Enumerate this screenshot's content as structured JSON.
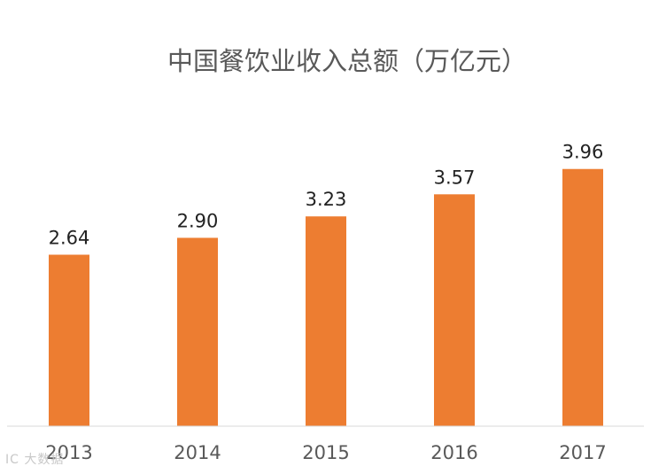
{
  "chart_data": {
    "type": "bar",
    "title": "中国餐饮业收入总额（万亿元）",
    "categories": [
      "2013",
      "2014",
      "2015",
      "2016",
      "2017"
    ],
    "values": [
      2.64,
      2.9,
      3.23,
      3.57,
      3.96
    ],
    "value_labels": [
      "2.64",
      "2.90",
      "3.23",
      "3.57",
      "3.96"
    ],
    "xlabel": "",
    "ylabel": "",
    "ylim": [
      0,
      4.2
    ],
    "grid": false,
    "legend": "none",
    "bar_color": "#ED7D31",
    "axis_color": "#D9D9D9"
  },
  "watermark": "IC 大数据"
}
